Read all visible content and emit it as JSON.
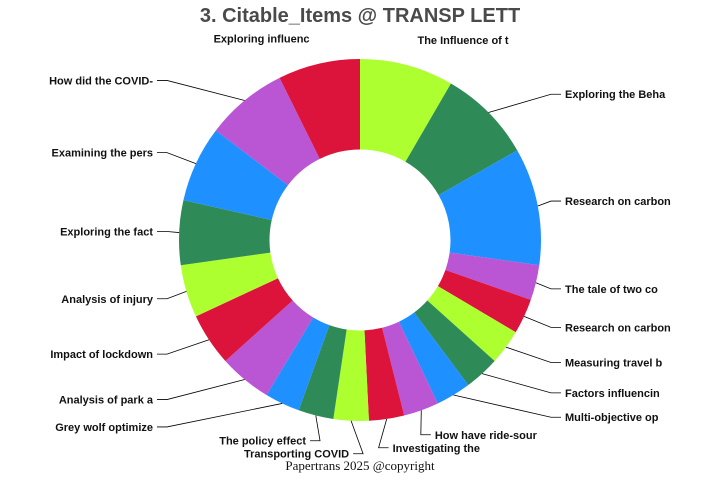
{
  "title": "3. Citable_Items @ TRANSP LETT",
  "footer": "Papertrans 2025 @copyright",
  "chart_data": {
    "type": "donut",
    "title": "3. Citable_Items @ TRANSP LETT",
    "start_angle_deg": 90,
    "direction": "clockwise",
    "inner_radius_ratio": 0.5,
    "palette": [
      "#1E90FF",
      "#2E8B57",
      "#ADFF2F",
      "#DC143C",
      "#BA55D3"
    ],
    "slices": [
      {
        "label": "The Influence of t",
        "value": 8.0,
        "color": "#ADFF2F"
      },
      {
        "label": "Exploring the Beha",
        "value": 8.0,
        "color": "#2E8B57"
      },
      {
        "label": "Research on carbon",
        "value": 10.0,
        "color": "#1E90FF"
      },
      {
        "label": "The tale of two co",
        "value": 3.0,
        "color": "#BA55D3"
      },
      {
        "label": "Research on carbon",
        "value": 3.0,
        "color": "#DC143C"
      },
      {
        "label": "Measuring travel b",
        "value": 3.0,
        "color": "#ADFF2F"
      },
      {
        "label": "Factors influencin",
        "value": 3.0,
        "color": "#2E8B57"
      },
      {
        "label": "Multi-objective op",
        "value": 3.0,
        "color": "#1E90FF"
      },
      {
        "label": "How have ride-sour",
        "value": 3.0,
        "color": "#BA55D3"
      },
      {
        "label": "Investigating the",
        "value": 3.0,
        "color": "#DC143C"
      },
      {
        "label": "Transporting COVID",
        "value": 3.0,
        "color": "#ADFF2F"
      },
      {
        "label": "The policy effect",
        "value": 3.0,
        "color": "#2E8B57"
      },
      {
        "label": "Grey wolf optimize",
        "value": 3.0,
        "color": "#1E90FF"
      },
      {
        "label": "Analysis of park a",
        "value": 4.5,
        "color": "#BA55D3"
      },
      {
        "label": "Impact of lockdown",
        "value": 4.5,
        "color": "#DC143C"
      },
      {
        "label": "Analysis of injury",
        "value": 4.5,
        "color": "#ADFF2F"
      },
      {
        "label": "Exploring the fact",
        "value": 5.5,
        "color": "#2E8B57"
      },
      {
        "label": "Examining the pers",
        "value": 6.5,
        "color": "#1E90FF"
      },
      {
        "label": "How did the COVID-",
        "value": 7.0,
        "color": "#BA55D3"
      },
      {
        "label": "Exploring influenc",
        "value": 7.0,
        "color": "#DC143C"
      }
    ]
  }
}
